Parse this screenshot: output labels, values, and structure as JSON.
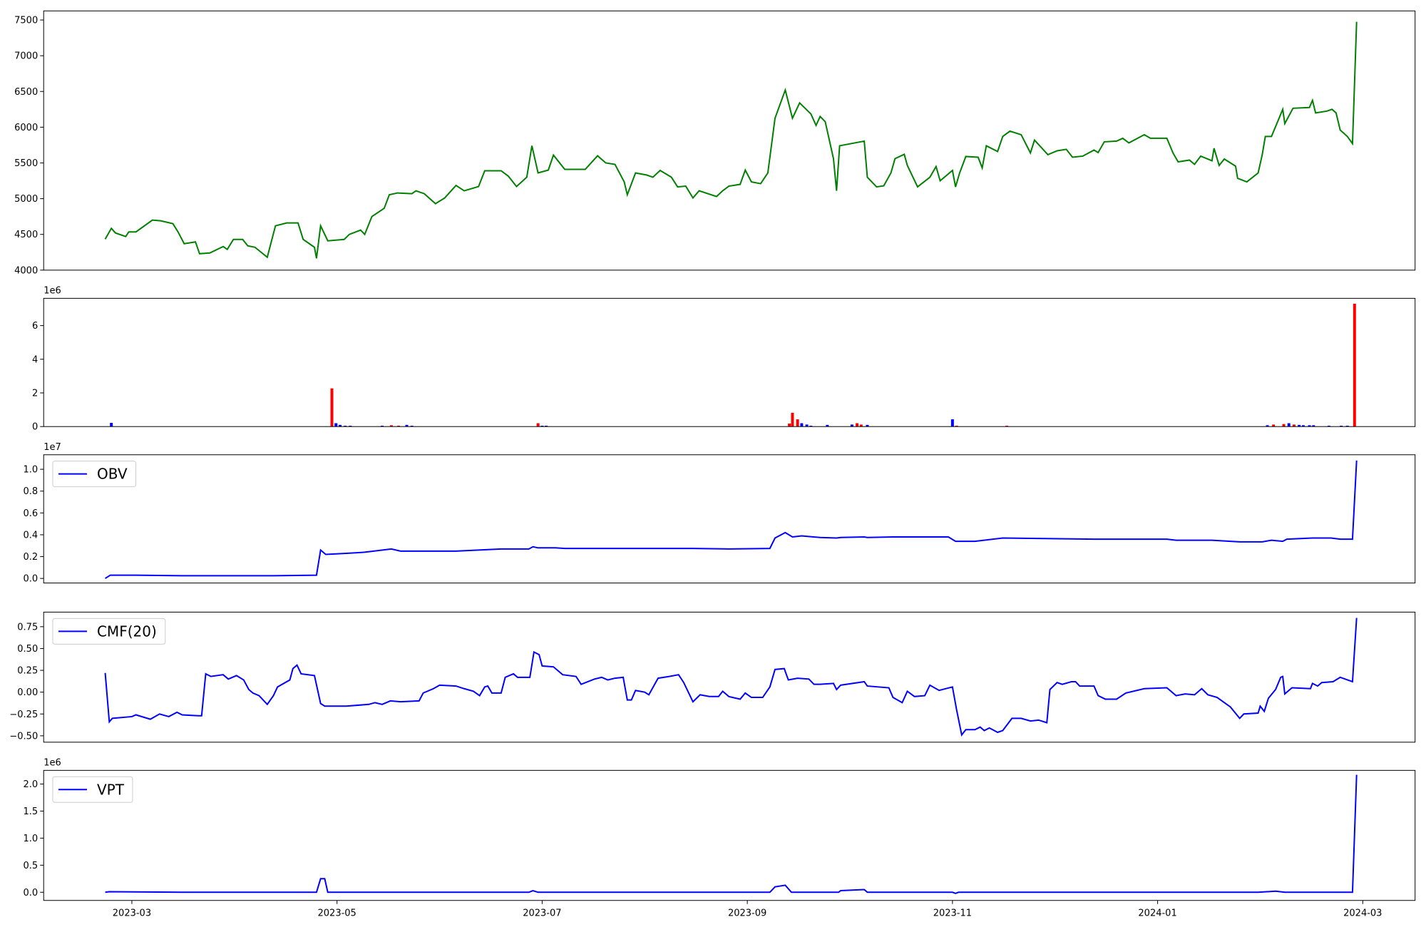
{
  "chart_data": [
    {
      "type": "line",
      "color": "#008000",
      "xlim": [
        1.14,
        14.51
      ],
      "ylim": [
        4000,
        7627
      ],
      "yticks": [
        4000,
        4500,
        5000,
        5500,
        6000,
        6500,
        7000,
        7500
      ],
      "x": [
        1.74,
        1.8,
        1.84,
        1.94,
        1.97,
        2.04,
        2.2,
        2.28,
        2.4,
        2.45,
        2.51,
        2.62,
        2.66,
        2.76,
        2.89,
        2.93,
        2.99,
        3.08,
        3.13,
        3.2,
        3.32,
        3.4,
        3.51,
        3.62,
        3.67,
        3.78,
        3.8,
        3.84,
        3.91,
        4.07,
        4.12,
        4.23,
        4.27,
        4.34,
        4.46,
        4.51,
        4.59,
        4.73,
        4.77,
        4.85,
        4.96,
        5.05,
        5.16,
        5.24,
        5.38,
        5.44,
        5.6,
        5.67,
        5.75,
        5.85,
        5.9,
        5.96,
        6.06,
        6.11,
        6.22,
        6.42,
        6.54,
        6.62,
        6.71,
        6.8,
        6.83,
        6.91,
        7.02,
        7.08,
        7.15,
        7.26,
        7.32,
        7.4,
        7.47,
        7.53,
        7.7,
        7.76,
        7.82,
        7.93,
        7.98,
        8.04,
        8.13,
        8.2,
        8.27,
        8.37,
        8.44,
        8.51,
        8.62,
        8.67,
        8.71,
        8.76,
        8.84,
        8.87,
        8.9,
        9.14,
        9.17,
        9.26,
        9.33,
        9.4,
        9.44,
        9.53,
        9.56,
        9.66,
        9.78,
        9.84,
        9.88,
        10.0,
        10.03,
        10.07,
        10.13,
        10.25,
        10.29,
        10.33,
        10.44,
        10.49,
        10.56,
        10.67,
        10.76,
        10.8,
        10.93,
        11.02,
        11.11,
        11.17,
        11.27,
        11.38,
        11.42,
        11.48,
        11.6,
        11.66,
        11.72,
        11.87,
        11.93,
        12.09,
        12.15,
        12.2,
        12.31,
        12.36,
        12.42,
        12.53,
        12.55,
        12.6,
        12.65,
        12.76,
        12.78,
        12.87,
        12.98,
        13.02,
        13.05,
        13.11,
        13.22,
        13.24,
        13.32,
        13.48,
        13.51,
        13.54,
        13.65,
        13.7,
        13.74,
        13.78,
        13.85,
        13.9,
        13.94
      ],
      "values": [
        4433,
        4585,
        4520,
        4470,
        4535,
        4535,
        4700,
        4690,
        4650,
        4535,
        4370,
        4395,
        4230,
        4240,
        4330,
        4290,
        4430,
        4430,
        4340,
        4320,
        4180,
        4620,
        4660,
        4660,
        4430,
        4320,
        4165,
        4620,
        4410,
        4430,
        4500,
        4560,
        4500,
        4750,
        4865,
        5055,
        5080,
        5070,
        5110,
        5070,
        4930,
        5010,
        5185,
        5110,
        5170,
        5390,
        5390,
        5315,
        5170,
        5300,
        5740,
        5360,
        5400,
        5610,
        5410,
        5410,
        5600,
        5500,
        5480,
        5235,
        5055,
        5360,
        5330,
        5300,
        5395,
        5300,
        5165,
        5175,
        5010,
        5110,
        5030,
        5110,
        5175,
        5200,
        5400,
        5235,
        5210,
        5360,
        6125,
        6520,
        6125,
        6340,
        6185,
        6025,
        6150,
        6075,
        5560,
        5110,
        5740,
        5805,
        5300,
        5165,
        5180,
        5360,
        5560,
        5620,
        5465,
        5165,
        5300,
        5450,
        5250,
        5395,
        5165,
        5360,
        5590,
        5580,
        5430,
        5740,
        5660,
        5870,
        5945,
        5895,
        5640,
        5820,
        5615,
        5670,
        5690,
        5580,
        5595,
        5680,
        5645,
        5795,
        5805,
        5845,
        5780,
        5895,
        5845,
        5845,
        5640,
        5515,
        5540,
        5480,
        5595,
        5530,
        5705,
        5465,
        5555,
        5455,
        5285,
        5235,
        5360,
        5615,
        5870,
        5870,
        6250,
        6050,
        6265,
        6275,
        6375,
        6200,
        6225,
        6250,
        6200,
        5960,
        5870,
        5770,
        7475
      ]
    },
    {
      "type": "bar",
      "offset_label": "1e6",
      "xlim": [
        1.14,
        14.51
      ],
      "ylim": [
        0,
        7.62
      ],
      "yticks": [
        0,
        2,
        4,
        6
      ],
      "x": [
        1.8,
        3.95,
        3.99,
        4.03,
        4.08,
        4.13,
        4.44,
        4.53,
        4.6,
        4.68,
        4.73,
        5.96,
        6.0,
        6.04,
        8.41,
        8.44,
        8.49,
        8.53,
        8.58,
        8.62,
        8.78,
        9.02,
        9.07,
        9.11,
        9.17,
        10.0,
        10.04,
        10.53,
        13.07,
        13.13,
        13.23,
        13.28,
        13.33,
        13.38,
        13.42,
        13.48,
        13.52,
        13.67,
        13.79,
        13.85,
        13.92
      ],
      "values": [
        0.22,
        2.27,
        0.2,
        0.1,
        0.05,
        0.05,
        0.05,
        0.08,
        0.05,
        0.1,
        0.05,
        0.2,
        0.05,
        0.05,
        0.18,
        0.82,
        0.43,
        0.2,
        0.12,
        0.05,
        0.1,
        0.12,
        0.2,
        0.12,
        0.1,
        0.43,
        0.05,
        0.05,
        0.08,
        0.12,
        0.15,
        0.2,
        0.12,
        0.1,
        0.08,
        0.08,
        0.08,
        0.05,
        0.05,
        0.05,
        7.3
      ],
      "colors": [
        "blue",
        "red",
        "blue",
        "blue",
        "blue",
        "blue",
        "blue",
        "red",
        "red",
        "blue",
        "blue",
        "red",
        "blue",
        "blue",
        "red",
        "red",
        "red",
        "blue",
        "blue",
        "blue",
        "blue",
        "blue",
        "red",
        "red",
        "blue",
        "blue",
        "red",
        "red",
        "blue",
        "red",
        "red",
        "blue",
        "red",
        "blue",
        "blue",
        "blue",
        "blue",
        "blue",
        "blue",
        "blue",
        "red"
      ]
    },
    {
      "type": "line",
      "offset_label": "1e7",
      "legend": "upper left",
      "xlim": [
        1.14,
        14.51
      ],
      "ylim": [
        -0.042,
        1.133
      ],
      "yticks": [
        {
          "value": 0,
          "label": "0.0"
        },
        {
          "value": 0.2,
          "label": "0.2"
        },
        {
          "value": 0.4,
          "label": "0.4"
        },
        {
          "value": 0.6,
          "label": "0.6"
        },
        {
          "value": 0.8,
          "label": "0.8"
        },
        {
          "value": 1,
          "label": "1.0"
        }
      ],
      "x": [
        1.74,
        1.79,
        2.04,
        2.49,
        2.93,
        3.38,
        3.8,
        3.84,
        3.89,
        4.09,
        4.27,
        4.53,
        4.62,
        5.16,
        5.6,
        5.87,
        5.91,
        5.96,
        6.13,
        6.22,
        6.93,
        7.47,
        7.82,
        8.22,
        8.27,
        8.37,
        8.44,
        8.53,
        8.71,
        8.87,
        8.91,
        9.14,
        9.17,
        9.42,
        9.96,
        10.03,
        10.22,
        10.49,
        11.38,
        12.09,
        12.18,
        12.53,
        12.8,
        13.02,
        13.11,
        13.22,
        13.26,
        13.51,
        13.69,
        13.78,
        13.9,
        13.94
      ],
      "series": [
        {
          "name": "OBV",
          "color": "#0000ff",
          "values": [
            0.0,
            0.03,
            0.03,
            0.025,
            0.025,
            0.025,
            0.03,
            0.26,
            0.22,
            0.23,
            0.24,
            0.27,
            0.25,
            0.25,
            0.27,
            0.27,
            0.29,
            0.28,
            0.28,
            0.275,
            0.275,
            0.275,
            0.27,
            0.275,
            0.37,
            0.42,
            0.38,
            0.39,
            0.375,
            0.37,
            0.375,
            0.38,
            0.375,
            0.38,
            0.38,
            0.34,
            0.34,
            0.37,
            0.36,
            0.36,
            0.35,
            0.35,
            0.335,
            0.335,
            0.35,
            0.34,
            0.36,
            0.37,
            0.37,
            0.36,
            0.36,
            1.08
          ]
        }
      ]
    },
    {
      "type": "line",
      "legend": "upper left",
      "xlim": [
        1.14,
        14.51
      ],
      "ylim": [
        -0.573,
        0.917
      ],
      "yticks": [
        {
          "value": -0.5,
          "label": "−0.50"
        },
        {
          "value": -0.25,
          "label": "−0.25"
        },
        {
          "value": 0,
          "label": "0.00"
        },
        {
          "value": 0.25,
          "label": "0.25"
        },
        {
          "value": 0.5,
          "label": "0.50"
        },
        {
          "value": 0.75,
          "label": "0.75"
        }
      ],
      "x": [
        1.74,
        1.78,
        1.81,
        2.0,
        2.04,
        2.18,
        2.27,
        2.36,
        2.44,
        2.49,
        2.65,
        2.68,
        2.72,
        2.77,
        2.89,
        2.94,
        3.02,
        3.09,
        3.14,
        3.18,
        3.24,
        3.32,
        3.38,
        3.42,
        3.54,
        3.57,
        3.61,
        3.65,
        3.78,
        3.84,
        3.88,
        4.09,
        4.31,
        4.37,
        4.44,
        4.52,
        4.62,
        4.8,
        4.84,
        4.94,
        5.0,
        5.16,
        5.24,
        5.33,
        5.39,
        5.44,
        5.47,
        5.51,
        5.6,
        5.64,
        5.72,
        5.76,
        5.88,
        5.92,
        5.97,
        6.0,
        6.11,
        6.2,
        6.33,
        6.38,
        6.51,
        6.58,
        6.64,
        6.71,
        6.79,
        6.83,
        6.87,
        6.91,
        7.0,
        7.04,
        7.13,
        7.24,
        7.33,
        7.38,
        7.47,
        7.54,
        7.63,
        7.72,
        7.76,
        7.82,
        7.93,
        7.98,
        8.04,
        8.15,
        8.22,
        8.27,
        8.36,
        8.4,
        8.49,
        8.6,
        8.65,
        8.71,
        8.84,
        8.87,
        8.91,
        9.14,
        9.17,
        9.38,
        9.42,
        9.51,
        9.56,
        9.63,
        9.73,
        9.78,
        9.87,
        10.0,
        10.04,
        10.09,
        10.13,
        10.22,
        10.27,
        10.31,
        10.36,
        10.44,
        10.49,
        10.58,
        10.67,
        10.76,
        10.84,
        10.92,
        10.95,
        11.02,
        11.07,
        11.16,
        11.2,
        11.24,
        11.38,
        11.42,
        11.49,
        11.6,
        11.69,
        11.87,
        12.09,
        12.18,
        12.27,
        12.36,
        12.43,
        12.49,
        12.58,
        12.71,
        12.8,
        12.84,
        12.98,
        13.0,
        13.04,
        13.08,
        13.15,
        13.2,
        13.22,
        13.24,
        13.31,
        13.49,
        13.51,
        13.56,
        13.6,
        13.71,
        13.78,
        13.9,
        13.94
      ],
      "series": [
        {
          "name": "CMF(20)",
          "color": "#0000ff",
          "values": [
            0.22,
            -0.34,
            -0.3,
            -0.28,
            -0.26,
            -0.31,
            -0.25,
            -0.28,
            -0.23,
            -0.26,
            -0.27,
            -0.27,
            0.21,
            0.18,
            0.2,
            0.15,
            0.19,
            0.14,
            0.03,
            -0.01,
            -0.04,
            -0.14,
            -0.04,
            0.06,
            0.14,
            0.27,
            0.31,
            0.21,
            0.19,
            -0.13,
            -0.16,
            -0.16,
            -0.14,
            -0.12,
            -0.14,
            -0.1,
            -0.11,
            -0.1,
            -0.01,
            0.04,
            0.08,
            0.07,
            0.04,
            0.01,
            -0.04,
            0.06,
            0.07,
            -0.01,
            -0.01,
            0.17,
            0.21,
            0.17,
            0.17,
            0.46,
            0.43,
            0.3,
            0.29,
            0.2,
            0.18,
            0.09,
            0.15,
            0.17,
            0.14,
            0.16,
            0.17,
            -0.09,
            -0.09,
            0.02,
            0.0,
            -0.03,
            0.16,
            0.18,
            0.2,
            0.11,
            -0.11,
            -0.03,
            -0.05,
            -0.05,
            0.01,
            -0.05,
            -0.08,
            -0.01,
            -0.06,
            -0.06,
            0.06,
            0.26,
            0.27,
            0.14,
            0.16,
            0.15,
            0.09,
            0.09,
            0.1,
            0.03,
            0.08,
            0.12,
            0.07,
            0.05,
            -0.06,
            -0.12,
            0.01,
            -0.05,
            -0.04,
            0.08,
            0.02,
            0.06,
            -0.2,
            -0.49,
            -0.43,
            -0.43,
            -0.4,
            -0.44,
            -0.41,
            -0.46,
            -0.44,
            -0.3,
            -0.3,
            -0.33,
            -0.32,
            -0.35,
            0.03,
            0.11,
            0.09,
            0.12,
            0.12,
            0.07,
            0.07,
            -0.04,
            -0.08,
            -0.08,
            -0.01,
            0.04,
            0.05,
            -0.04,
            -0.02,
            -0.03,
            0.04,
            -0.03,
            -0.06,
            -0.17,
            -0.3,
            -0.25,
            -0.24,
            -0.16,
            -0.22,
            -0.07,
            0.03,
            0.17,
            0.18,
            -0.02,
            0.05,
            0.04,
            0.1,
            0.07,
            0.11,
            0.12,
            0.17,
            0.12,
            0.85
          ]
        }
      ]
    },
    {
      "type": "line",
      "offset_label": "1e6",
      "legend": "upper left",
      "xlim": [
        1.14,
        14.51
      ],
      "ylim": [
        -0.151,
        2.252
      ],
      "yticks": [
        {
          "value": 0,
          "label": "0.0"
        },
        {
          "value": 0.5,
          "label": "0.5"
        },
        {
          "value": 1,
          "label": "1.0"
        },
        {
          "value": 1.5,
          "label": "1.5"
        },
        {
          "value": 2,
          "label": "2.0"
        }
      ],
      "xticks": [
        {
          "value": 2,
          "label": "2023-03"
        },
        {
          "value": 4,
          "label": "2023-05"
        },
        {
          "value": 6,
          "label": "2023-07"
        },
        {
          "value": 8,
          "label": "2023-09"
        },
        {
          "value": 10,
          "label": "2023-11"
        },
        {
          "value": 12,
          "label": "2024-01"
        },
        {
          "value": 14,
          "label": "2024-03"
        }
      ],
      "x": [
        1.74,
        1.78,
        2.49,
        3.8,
        3.84,
        3.88,
        3.91,
        5.87,
        5.91,
        5.96,
        8.22,
        8.27,
        8.37,
        8.43,
        8.89,
        8.91,
        9.14,
        9.17,
        10.0,
        10.03,
        10.06,
        12.98,
        13.15,
        13.24,
        13.9,
        13.94
      ],
      "series": [
        {
          "name": "VPT",
          "color": "#0000ff",
          "values": [
            0,
            0.01,
            0,
            0,
            0.25,
            0.25,
            0,
            0,
            0.03,
            0,
            0,
            0.1,
            0.13,
            0,
            0,
            0.03,
            0.05,
            0,
            0,
            -0.02,
            0,
            0,
            0.02,
            0,
            0,
            2.17
          ]
        }
      ]
    }
  ]
}
